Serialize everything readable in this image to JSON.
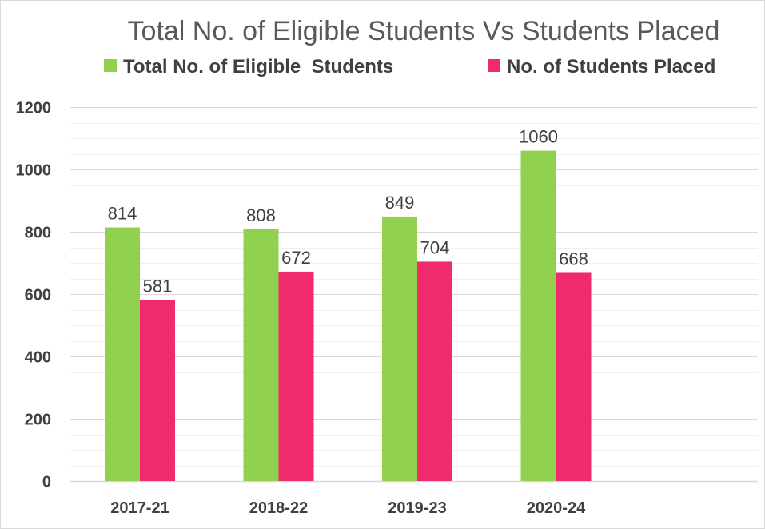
{
  "chart_data": {
    "type": "bar",
    "title": "Total No. of Eligible Students Vs Students Placed",
    "categories": [
      "2017-21",
      "2018-22",
      "2019-23",
      "2020-24"
    ],
    "series": [
      {
        "name": "Total No. of Eligible  Students",
        "values": [
          814,
          808,
          849,
          1060
        ],
        "color": "#92d050"
      },
      {
        "name": "No. of Students Placed",
        "values": [
          581,
          672,
          704,
          668
        ],
        "color": "#f02b6d"
      }
    ],
    "ylim": [
      0,
      1200
    ],
    "yticks": [
      0,
      200,
      400,
      600,
      800,
      1000,
      1200
    ],
    "xlabel": "",
    "ylabel": "",
    "grid": true,
    "legend": "top",
    "data_labels": true
  }
}
